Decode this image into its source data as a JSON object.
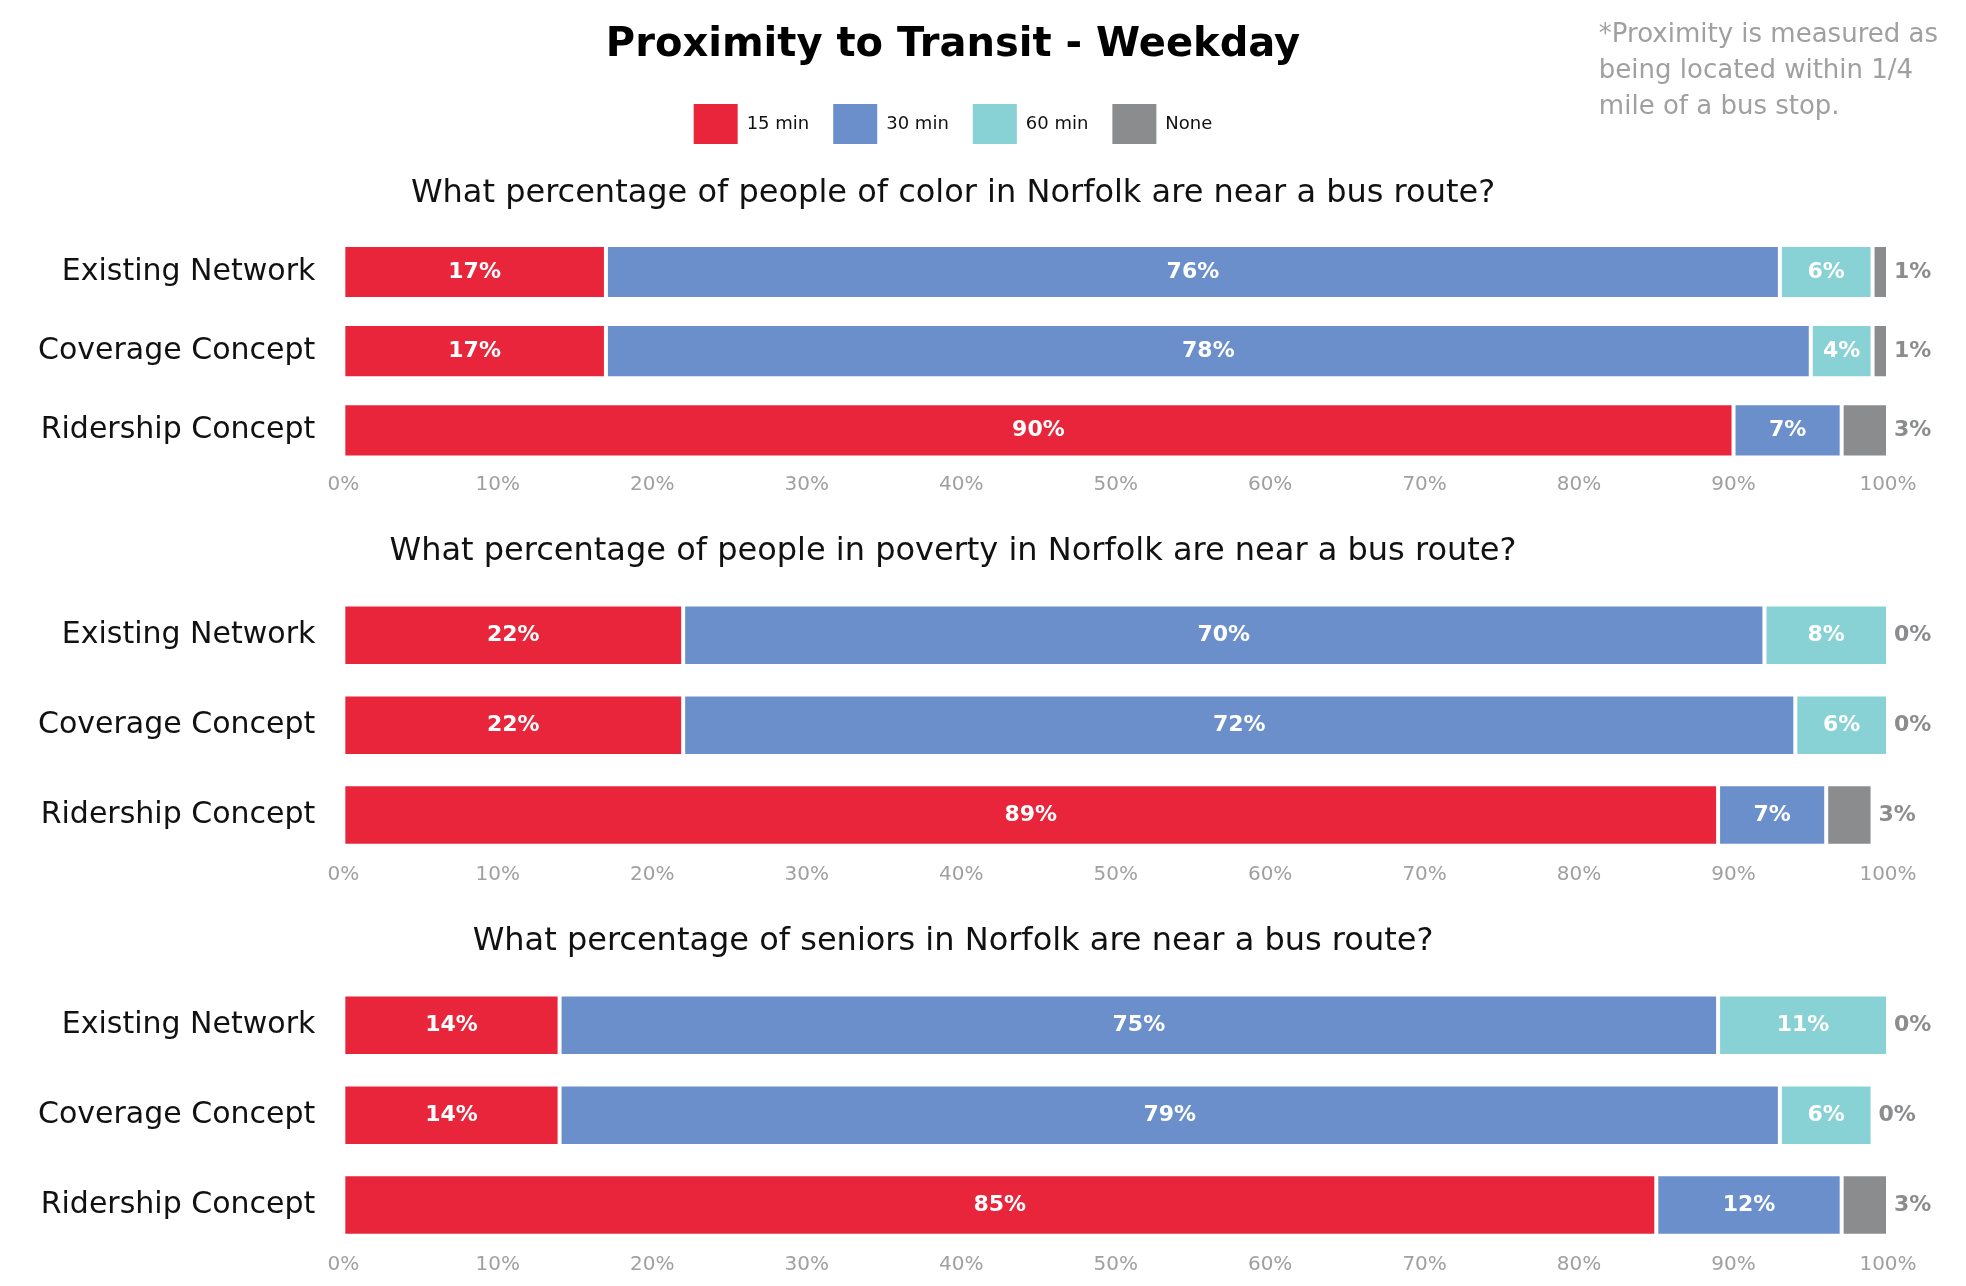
{
  "chart_data": [
    {
      "type": "bar",
      "title": "Proximity to Transit - Weekday",
      "subtitle": "What percentage of people of color in Norfolk are near a bus route?",
      "annotations": [
        "*Proximity is measured as being located within 1/4 mile of a bus stop."
      ],
      "orientation": "horizontal",
      "stacked": true,
      "legend": "top",
      "categories": [
        "Existing Network",
        "Coverage Concept",
        "Ridership Concept"
      ],
      "series": [
        {
          "name": "15 min",
          "color": "#e8253a",
          "values": [
            17,
            17,
            90
          ],
          "value_labels": [
            "17%",
            "17%",
            "90%"
          ]
        },
        {
          "name": "30 min",
          "color": "#6a8fcb",
          "values": [
            76,
            78,
            7
          ],
          "value_labels": [
            "76%",
            "78%",
            "7%"
          ]
        },
        {
          "name": "60 min",
          "color": "#88d1d4",
          "values": [
            6,
            4,
            0
          ],
          "value_labels": [
            "6%",
            "4%",
            null
          ]
        },
        {
          "name": "None",
          "color": "#8a8c8e",
          "values": [
            1,
            1,
            3
          ],
          "value_labels": [
            "1%",
            "1%",
            "3%"
          ]
        }
      ],
      "xlim": [
        0,
        100
      ],
      "xticks": [
        {
          "value": 0,
          "label": "0%"
        },
        {
          "value": 10,
          "label": "10%"
        },
        {
          "value": 20,
          "label": "20%"
        },
        {
          "value": 30,
          "label": "30%"
        },
        {
          "value": 40,
          "label": "40%"
        },
        {
          "value": 50,
          "label": "50%"
        },
        {
          "value": 60,
          "label": "60%"
        },
        {
          "value": 70,
          "label": "70%"
        },
        {
          "value": 80,
          "label": "80%"
        },
        {
          "value": 90,
          "label": "90%"
        },
        {
          "value": 100,
          "label": "100%"
        }
      ]
    },
    {
      "type": "bar",
      "subtitle": "What percentage of people in poverty in Norfolk are near a bus route?",
      "orientation": "horizontal",
      "stacked": true,
      "categories": [
        "Existing Network",
        "Coverage Concept",
        "Ridership Concept"
      ],
      "series": [
        {
          "color": "#e8253a",
          "values": [
            22,
            22,
            89
          ],
          "value_labels": [
            "22%",
            "22%",
            "89%"
          ]
        },
        {
          "color": "#6a8fcb",
          "values": [
            70,
            72,
            7
          ],
          "value_labels": [
            "70%",
            "72%",
            "7%"
          ]
        },
        {
          "color": "#88d1d4",
          "values": [
            8,
            6,
            0
          ],
          "value_labels": [
            "8%",
            "6%",
            null
          ]
        },
        {
          "color": "#8a8c8e",
          "values": [
            0,
            0,
            3
          ],
          "value_labels": [
            "0%",
            "0%",
            "3%"
          ]
        }
      ],
      "xlim": [
        0,
        100
      ],
      "xticks": [
        {
          "value": 0,
          "label": "0%"
        },
        {
          "value": 10,
          "label": "10%"
        },
        {
          "value": 20,
          "label": "20%"
        },
        {
          "value": 30,
          "label": "30%"
        },
        {
          "value": 40,
          "label": "40%"
        },
        {
          "value": 50,
          "label": "50%"
        },
        {
          "value": 60,
          "label": "60%"
        },
        {
          "value": 70,
          "label": "70%"
        },
        {
          "value": 80,
          "label": "80%"
        },
        {
          "value": 90,
          "label": "90%"
        },
        {
          "value": 100,
          "label": "100%"
        }
      ]
    },
    {
      "type": "bar",
      "subtitle": "What percentage of seniors in Norfolk are near a bus route?",
      "orientation": "horizontal",
      "stacked": true,
      "categories": [
        "Existing Network",
        "Coverage Concept",
        "Ridership Concept"
      ],
      "series": [
        {
          "color": "#e8253a",
          "values": [
            14,
            14,
            85
          ],
          "value_labels": [
            "14%",
            "14%",
            "85%"
          ]
        },
        {
          "color": "#6a8fcb",
          "values": [
            75,
            79,
            12
          ],
          "value_labels": [
            "75%",
            "79%",
            "12%"
          ]
        },
        {
          "color": "#88d1d4",
          "values": [
            11,
            6,
            0
          ],
          "value_labels": [
            "11%",
            "6%",
            null
          ]
        },
        {
          "color": "#8a8c8e",
          "values": [
            0,
            0,
            3
          ],
          "value_labels": [
            "0%",
            "0%",
            "3%"
          ]
        }
      ],
      "xlim": [
        0,
        100
      ],
      "xticks": [
        {
          "value": 0,
          "label": "0%"
        },
        {
          "value": 10,
          "label": "10%"
        },
        {
          "value": 20,
          "label": "20%"
        },
        {
          "value": 30,
          "label": "30%"
        },
        {
          "value": 40,
          "label": "40%"
        },
        {
          "value": 50,
          "label": "50%"
        },
        {
          "value": 60,
          "label": "60%"
        },
        {
          "value": 70,
          "label": "70%"
        },
        {
          "value": 80,
          "label": "80%"
        },
        {
          "value": 90,
          "label": "90%"
        },
        {
          "value": 100,
          "label": "100%"
        }
      ]
    }
  ]
}
